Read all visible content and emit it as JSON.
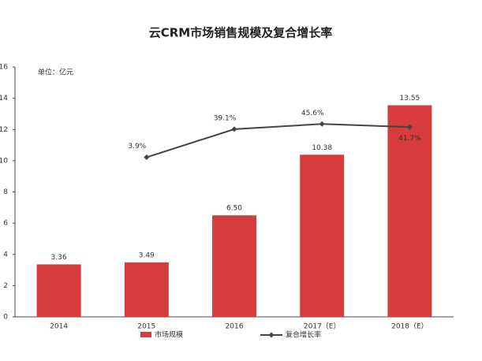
{
  "chart_data": {
    "type": "bar_line",
    "title": "云CRM市场销售规模及复合增长率",
    "unit_label": "单位：亿元",
    "categories": [
      "2014",
      "2015",
      "2016",
      "2017（E）",
      "2018（E）"
    ],
    "ylim": [
      0,
      16
    ],
    "yticks": [
      0,
      2,
      4,
      6,
      8,
      10,
      12,
      14,
      16
    ],
    "y2lim": [
      -196,
      117
    ],
    "series": [
      {
        "name": "市场规模",
        "type": "bar",
        "color": "#d63c3c",
        "values": [
          3.36,
          3.49,
          6.5,
          10.38,
          13.55
        ],
        "value_labels": [
          "3.36",
          "3.49",
          "6.50",
          "10.38",
          "13.55"
        ]
      },
      {
        "name": "复合增长率",
        "type": "line",
        "axis": "y2",
        "color": "#444444",
        "values": [
          null,
          3.9,
          39.1,
          45.6,
          41.7
        ],
        "value_labels": [
          null,
          "3.9%",
          "39.1%",
          "45.6%",
          "41.7%"
        ]
      }
    ]
  }
}
